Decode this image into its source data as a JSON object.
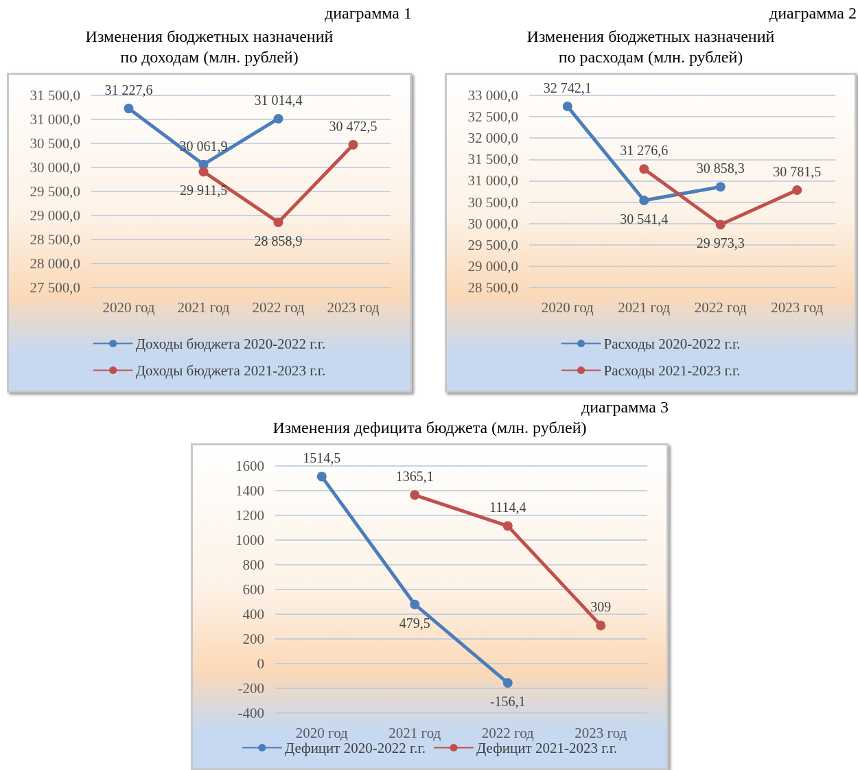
{
  "chart_data": [
    {
      "type": "line",
      "annotations": [
        "диаграмма 1"
      ],
      "title": "Изменения бюджетных назначений\nпо доходам (млн. рублей)",
      "categories": [
        "2020 год",
        "2021 год",
        "2022 год",
        "2023 год"
      ],
      "ylim": [
        27500,
        31500
      ],
      "yticks": [
        {
          "value": 27500,
          "label": "27 500,0"
        },
        {
          "value": 28000,
          "label": "28 000,0"
        },
        {
          "value": 28500,
          "label": "28 500,0"
        },
        {
          "value": 29000,
          "label": "29 000,0"
        },
        {
          "value": 29500,
          "label": "29 500,0"
        },
        {
          "value": 30000,
          "label": "30 000,0"
        },
        {
          "value": 30500,
          "label": "30 500,0"
        },
        {
          "value": 31000,
          "label": "31 000,0"
        },
        {
          "value": 31500,
          "label": "31 500,0"
        }
      ],
      "grid": "y",
      "legend": "bottom",
      "marker": "circle",
      "series": [
        {
          "name": "Доходы бюджета 2020-2022 г.г.",
          "color": "#4a7ebb",
          "values": [
            31227.6,
            30061.9,
            31014.4,
            null
          ],
          "value_labels": [
            "31 227,6",
            "30 061,9",
            "31 014,4",
            null
          ]
        },
        {
          "name": "Доходы бюджета 2021-2023 г.г.",
          "color": "#c0504d",
          "values": [
            null,
            29911.5,
            28858.9,
            30472.5
          ],
          "value_labels": [
            null,
            "29 911,5",
            "28 858,9",
            "30 472,5"
          ]
        }
      ]
    },
    {
      "type": "line",
      "annotations": [
        "диаграмма 2"
      ],
      "title": "Изменения бюджетных назначений\nпо расходам (млн. рублей)",
      "categories": [
        "2020 год",
        "2021 год",
        "2022 год",
        "2023 год"
      ],
      "ylim": [
        28500,
        33000
      ],
      "yticks": [
        {
          "value": 28500,
          "label": "28 500,0"
        },
        {
          "value": 29000,
          "label": "29 000,0"
        },
        {
          "value": 29500,
          "label": "29 500,0"
        },
        {
          "value": 30000,
          "label": "30 000,0"
        },
        {
          "value": 30500,
          "label": "30 500,0"
        },
        {
          "value": 31000,
          "label": "31 000,0"
        },
        {
          "value": 31500,
          "label": "31 500,0"
        },
        {
          "value": 32000,
          "label": "32 000,0"
        },
        {
          "value": 32500,
          "label": "32 500,0"
        },
        {
          "value": 33000,
          "label": "33 000,0"
        }
      ],
      "grid": "y",
      "legend": "bottom",
      "marker": "circle",
      "series": [
        {
          "name": "Расходы 2020-2022 г.г.",
          "color": "#4a7ebb",
          "values": [
            32742.1,
            30541.4,
            30858.3,
            null
          ],
          "value_labels": [
            "32 742,1",
            "30 541,4",
            "30 858,3",
            null
          ]
        },
        {
          "name": "Расходы 2021-2023 г.г.",
          "color": "#c0504d",
          "values": [
            null,
            31276.6,
            29973.3,
            30781.5
          ],
          "value_labels": [
            null,
            "31 276,6",
            "29 973,3",
            "30 781,5"
          ]
        }
      ]
    },
    {
      "type": "line",
      "annotations": [
        "диаграмма 3"
      ],
      "title": "Изменения дефицита бюджета (млн. рублей)",
      "categories": [
        "2020 год",
        "2021 год",
        "2022 год",
        "2023 год"
      ],
      "ylim": [
        -400,
        1600
      ],
      "yticks": [
        -400,
        -200,
        0,
        200,
        400,
        600,
        800,
        1000,
        1200,
        1400,
        1600
      ],
      "grid": "y",
      "legend": "bottom",
      "marker": "circle",
      "series": [
        {
          "name": "Дефицит 2020-2022 г.г.",
          "color": "#4a7ebb",
          "values": [
            1514.5,
            479.5,
            -156.1,
            null
          ],
          "value_labels": [
            "1514,5",
            "479,5",
            "-156,1",
            null
          ]
        },
        {
          "name": "Дефицит 2021-2023 г.г.",
          "color": "#c0504d",
          "values": [
            null,
            1365.1,
            1114.4,
            309
          ],
          "value_labels": [
            null,
            "1365,1",
            "1114,4",
            "309"
          ]
        }
      ]
    }
  ]
}
